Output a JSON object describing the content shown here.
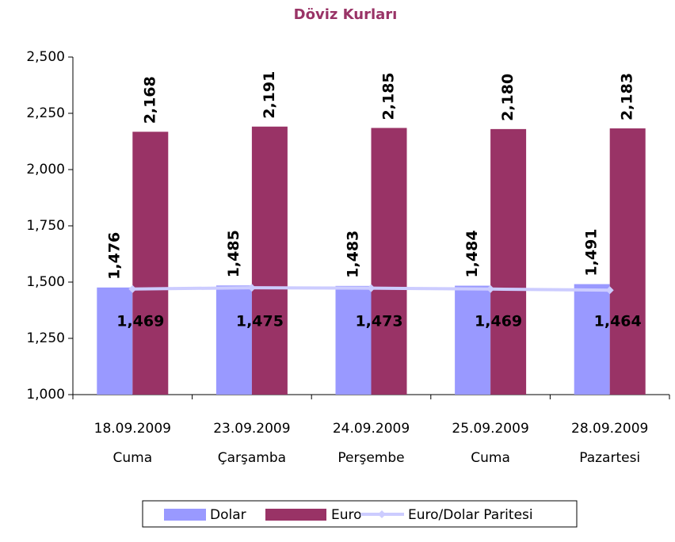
{
  "chart_data": {
    "type": "bar",
    "title": "Döviz Kurları",
    "categories": [
      [
        "18.09.2009",
        "Cuma"
      ],
      [
        "23.09.2009",
        "Çarşamba"
      ],
      [
        "24.09.2009",
        "Perşembe"
      ],
      [
        "25.09.2009",
        "Cuma"
      ],
      [
        "28.09.2009",
        "Pazartesi"
      ]
    ],
    "series": [
      {
        "name": "Dolar",
        "color": "#9999ff",
        "values": [
          1.476,
          1.485,
          1.483,
          1.484,
          1.491
        ],
        "value_labels": [
          "1,476",
          "1,485",
          "1,483",
          "1,484",
          "1,491"
        ]
      },
      {
        "name": "Euro",
        "color": "#993366",
        "values": [
          2.168,
          2.191,
          2.185,
          2.18,
          2.183
        ],
        "value_labels": [
          "2,168",
          "2,191",
          "2,185",
          "2,180",
          "2,183"
        ]
      },
      {
        "name": "Euro/Dolar Paritesi",
        "type": "line",
        "color": "#ccccff",
        "values": [
          1.469,
          1.475,
          1.473,
          1.469,
          1.464
        ],
        "value_labels": [
          "1,469",
          "1,475",
          "1,473",
          "1,469",
          "1,464"
        ]
      }
    ],
    "ylim": [
      1.0,
      2.5
    ],
    "yticks": [
      {
        "value": 1.0,
        "label": "1,000"
      },
      {
        "value": 1.25,
        "label": "1,250"
      },
      {
        "value": 1.5,
        "label": "1,500"
      },
      {
        "value": 1.75,
        "label": "1,750"
      },
      {
        "value": 2.0,
        "label": "2,000"
      },
      {
        "value": 2.25,
        "label": "2,250"
      },
      {
        "value": 2.5,
        "label": "2,500"
      }
    ],
    "legend": "bottom"
  }
}
